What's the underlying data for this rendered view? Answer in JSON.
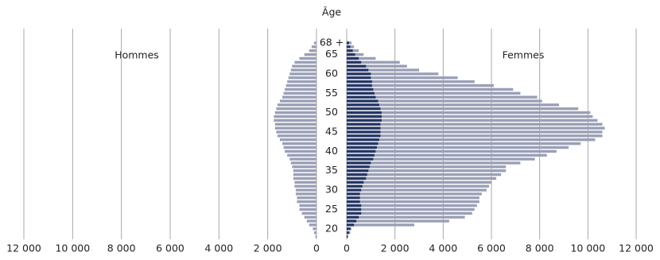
{
  "chart_data": {
    "type": "pyramid",
    "axis_title": "Âge",
    "categories": [
      null,
      null,
      "20",
      null,
      null,
      null,
      null,
      "25",
      null,
      null,
      null,
      null,
      "30",
      null,
      null,
      null,
      null,
      "35",
      null,
      null,
      null,
      null,
      "40",
      null,
      null,
      null,
      null,
      "45",
      null,
      null,
      null,
      null,
      "50",
      null,
      null,
      null,
      null,
      "55",
      null,
      null,
      null,
      null,
      "60",
      null,
      null,
      null,
      null,
      "65",
      null,
      null,
      "68 +"
    ],
    "grid": true,
    "left": {
      "label": "Hommes",
      "xlim": [
        0,
        12000
      ],
      "xticks": [
        {
          "value": 12000,
          "label": "12 000"
        },
        {
          "value": 10000,
          "label": "10 000"
        },
        {
          "value": 8000,
          "label": "8 000"
        },
        {
          "value": 6000,
          "label": "6 000"
        },
        {
          "value": 4000,
          "label": "4 000"
        },
        {
          "value": 2000,
          "label": "2 000"
        },
        0
      ],
      "series": [
        {
          "color": "#9a9fb6",
          "values": [
            50,
            100,
            150,
            300,
            400,
            500,
            600,
            700,
            700,
            800,
            800,
            850,
            850,
            900,
            900,
            950,
            950,
            950,
            1000,
            1050,
            1100,
            1200,
            1300,
            1350,
            1400,
            1500,
            1600,
            1650,
            1700,
            1700,
            1750,
            1750,
            1700,
            1650,
            1600,
            1500,
            1400,
            1350,
            1300,
            1250,
            1200,
            1150,
            1100,
            1050,
            1000,
            900,
            700,
            500,
            300,
            200,
            100
          ]
        }
      ]
    },
    "right": {
      "label": "Femmes",
      "xlim": [
        0,
        12000
      ],
      "xticks": [
        0,
        {
          "value": 2000,
          "label": "2 000"
        },
        {
          "value": 4000,
          "label": "4 000"
        },
        {
          "value": 6000,
          "label": "6 000"
        },
        {
          "value": 8000,
          "label": "8 000"
        },
        {
          "value": 10000,
          "label": "10 000"
        },
        {
          "value": 12000,
          "label": "12 000"
        }
      ],
      "series": [
        {
          "color": "#9a9fb6",
          "values": [
            50,
            150,
            200,
            2800,
            4250,
            4900,
            5200,
            5300,
            5400,
            5500,
            5500,
            5600,
            5800,
            5900,
            6000,
            6200,
            6400,
            6600,
            6600,
            7200,
            7800,
            8300,
            8700,
            9200,
            9700,
            10300,
            10600,
            10600,
            10700,
            10600,
            10400,
            10200,
            10100,
            9600,
            8800,
            8100,
            7900,
            7200,
            6900,
            6100,
            5300,
            4600,
            3800,
            3000,
            2500,
            2200,
            1200,
            700,
            500,
            300,
            200
          ]
        },
        {
          "color": "#263766",
          "values": [
            50,
            100,
            150,
            300,
            400,
            500,
            600,
            600,
            600,
            550,
            550,
            550,
            600,
            650,
            700,
            800,
            850,
            900,
            950,
            1000,
            1100,
            1150,
            1200,
            1250,
            1300,
            1350,
            1400,
            1400,
            1400,
            1400,
            1450,
            1450,
            1450,
            1400,
            1350,
            1300,
            1200,
            1150,
            1100,
            1050,
            1050,
            1000,
            1000,
            900,
            800,
            600,
            500,
            350,
            250,
            150,
            100
          ]
        }
      ]
    }
  }
}
